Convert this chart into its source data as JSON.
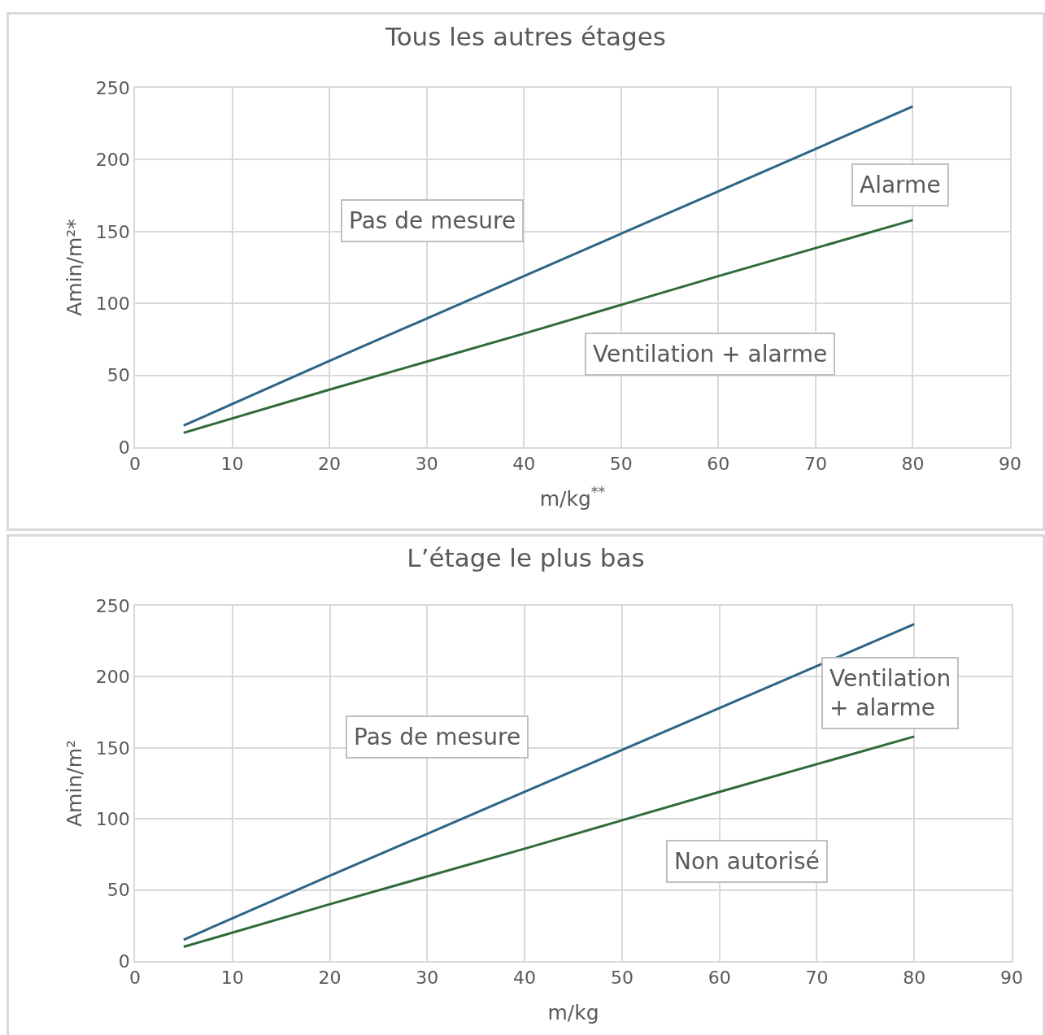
{
  "chart_data": [
    {
      "type": "line",
      "title": "Tous les autres étages",
      "xlabel": "m/kg$^{**}$",
      "ylabel": "Amin/m²*",
      "x": [
        5,
        20,
        40,
        60,
        80
      ],
      "series": [
        {
          "color": "#2d6488",
          "values": [
            15,
            60,
            119,
            178,
            237
          ]
        },
        {
          "color": "#2f6b3a",
          "values": [
            10,
            40,
            79,
            119,
            158
          ]
        }
      ],
      "annotations": [
        "Pas de mesure",
        "Alarme",
        "Ventilation + alarme"
      ],
      "xlim": [
        0,
        90
      ],
      "xticks": [
        0,
        10,
        20,
        30,
        40,
        50,
        60,
        70,
        80,
        90
      ],
      "ylim": [
        0,
        250
      ],
      "yticks": [
        0,
        50,
        100,
        150,
        200,
        250
      ],
      "grid": true,
      "marker": "none",
      "line_style": "solid"
    },
    {
      "type": "line",
      "title": "L’étage le plus bas",
      "xlabel": "m/kg",
      "ylabel": "Amin/m²",
      "x": [
        5,
        20,
        40,
        60,
        80
      ],
      "series": [
        {
          "color": "#2d6488",
          "values": [
            15,
            60,
            119,
            178,
            237
          ]
        },
        {
          "color": "#2f6b3a",
          "values": [
            10,
            40,
            79,
            119,
            158
          ]
        }
      ],
      "annotations": [
        "Pas de mesure",
        "Ventilation\n+ alarme",
        "Non autorisé"
      ],
      "xlim": [
        0,
        90
      ],
      "xticks": [
        0,
        10,
        20,
        30,
        40,
        50,
        60,
        70,
        80,
        90
      ],
      "ylim": [
        0,
        250
      ],
      "yticks": [
        0,
        50,
        100,
        150,
        200,
        250
      ],
      "grid": true,
      "marker": "none",
      "line_style": "solid"
    }
  ]
}
